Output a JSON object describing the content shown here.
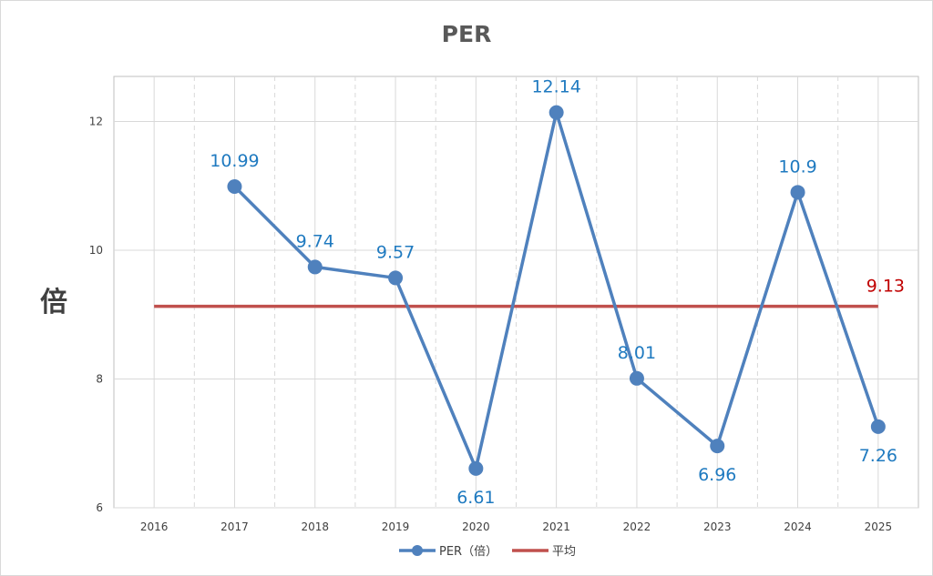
{
  "chart_data": {
    "type": "line",
    "title": "PER",
    "xlabel": "",
    "ylabel": "倍",
    "categories": [
      "2016",
      "2017",
      "2018",
      "2019",
      "2020",
      "2021",
      "2022",
      "2023",
      "2024",
      "2025"
    ],
    "ylim": [
      6,
      12.7
    ],
    "yticks": [
      6,
      8,
      10,
      12
    ],
    "grid": {
      "vertical": true,
      "horizontal": true
    },
    "series": [
      {
        "name": "PER（倍）",
        "color": "#4f81bd",
        "values": [
          null,
          10.99,
          9.74,
          9.57,
          6.61,
          12.14,
          8.01,
          6.96,
          10.9,
          7.26
        ],
        "labels": [
          "",
          "10.99",
          "9.74",
          "9.57",
          "6.61",
          "12.14",
          "8.01",
          "6.96",
          "10.9",
          "7.26"
        ]
      },
      {
        "name": "平均",
        "color": "#c0504d",
        "values": [
          9.13,
          9.13,
          9.13,
          9.13,
          9.13,
          9.13,
          9.13,
          9.13,
          9.13,
          9.13
        ],
        "label": "9.13",
        "label_color": "#c00000"
      }
    ],
    "legend": "bottom"
  }
}
